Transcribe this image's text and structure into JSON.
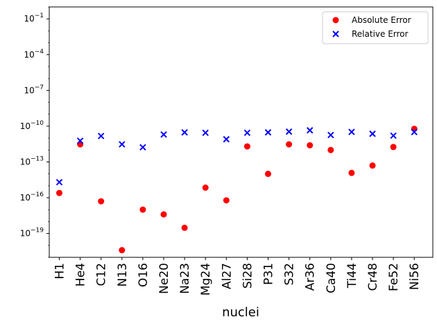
{
  "chart_data": {
    "type": "scatter",
    "xlabel": "nuclei",
    "ylabel": "",
    "yscale": "log",
    "ylim": [
      1e-21,
      1
    ],
    "yticks": [
      {
        "value": 1e-19,
        "base": "10",
        "exp": "−19"
      },
      {
        "value": 1e-16,
        "base": "10",
        "exp": "−16"
      },
      {
        "value": 1e-13,
        "base": "10",
        "exp": "−13"
      },
      {
        "value": 1e-10,
        "base": "10",
        "exp": "−10"
      },
      {
        "value": 1e-07,
        "base": "10",
        "exp": "−7"
      },
      {
        "value": 0.0001,
        "base": "10",
        "exp": "−4"
      },
      {
        "value": 0.1,
        "base": "10",
        "exp": "−1"
      }
    ],
    "categories": [
      "H1",
      "He4",
      "C12",
      "N13",
      "O16",
      "Ne20",
      "Na23",
      "Mg24",
      "Al27",
      "Si28",
      "P31",
      "S32",
      "Ar36",
      "Ca40",
      "Ti44",
      "Cr48",
      "Fe52",
      "Ni56"
    ],
    "legend_position": "top-right",
    "grid": false,
    "series": [
      {
        "name": "Absolute Error",
        "marker": "circle",
        "color": "#ff0000",
        "values": [
          2.5e-16,
          3e-12,
          5e-17,
          4e-21,
          1e-17,
          4e-18,
          3e-19,
          7e-16,
          6e-17,
          2e-12,
          1e-14,
          3e-12,
          2.5e-12,
          1e-12,
          1.2e-14,
          5e-14,
          1.8e-12,
          6e-11
        ]
      },
      {
        "name": "Relative Error",
        "marker": "x",
        "color": "#0000ff",
        "values": [
          2e-15,
          6e-12,
          1.5e-11,
          3e-12,
          1.7e-12,
          2e-11,
          3e-11,
          2.8e-11,
          8e-12,
          2.8e-11,
          3e-11,
          3.5e-11,
          4.5e-11,
          1.8e-11,
          3.3e-11,
          2.3e-11,
          1.6e-11,
          3.2e-11
        ]
      }
    ]
  }
}
